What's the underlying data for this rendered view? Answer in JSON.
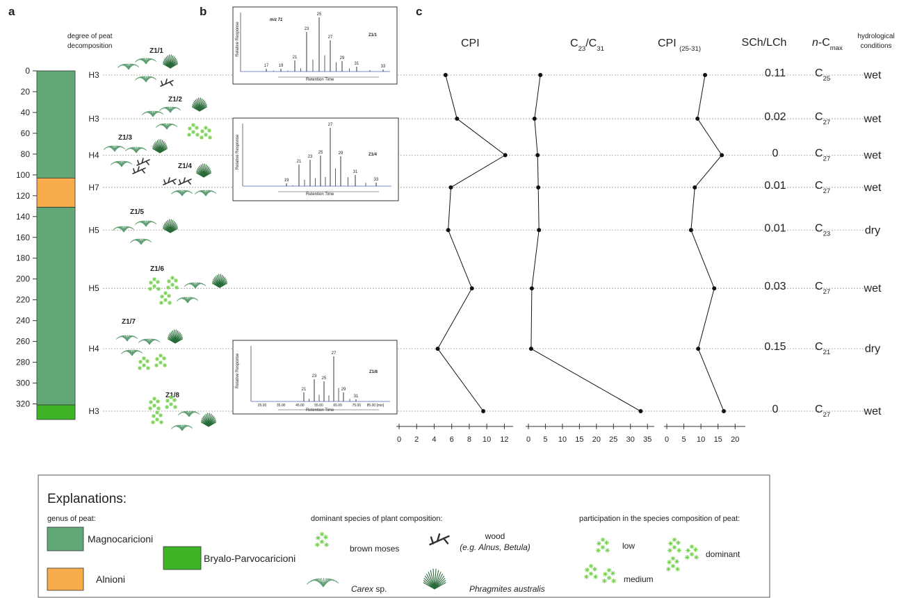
{
  "panel_labels": {
    "a": "a",
    "b": "b",
    "c": "c"
  },
  "column": {
    "header": [
      "degree of peat",
      "decomposition"
    ],
    "ylim": [
      0,
      335
    ],
    "yticks": [
      0,
      20,
      40,
      60,
      80,
      100,
      120,
      140,
      160,
      180,
      200,
      220,
      240,
      260,
      280,
      300,
      320
    ],
    "layers": [
      {
        "name": "Magnocaricioni",
        "color": "#62a877",
        "intervals": [
          [
            0,
            103
          ],
          [
            131,
            321
          ]
        ]
      },
      {
        "name": "Alnioni",
        "color": "#f9ac4b",
        "intervals": [
          [
            103,
            131
          ]
        ]
      },
      {
        "name": "Bryalo-Parvocaricioni",
        "color": "#3db526",
        "intervals": [
          [
            321,
            335
          ]
        ]
      }
    ]
  },
  "samples": {
    "ids": [
      "Z1/1",
      "Z1/2",
      "Z1/3",
      "Z1/4",
      "Z1/5",
      "Z1/6",
      "Z1/7",
      "Z1/8"
    ],
    "depth": [
      4,
      46,
      81,
      112,
      153,
      209,
      267,
      327
    ],
    "degree": [
      "H3",
      "H3",
      "H4",
      "H7",
      "H5",
      "H5",
      "H4",
      "H3"
    ],
    "scch_lch": [
      0.11,
      0.02,
      0,
      0.01,
      0.01,
      0.03,
      0.15,
      0
    ],
    "n_cmax": [
      [
        {
          "t": "C"
        },
        {
          "t": "25",
          "sub": true
        }
      ],
      [
        {
          "t": "C"
        },
        {
          "t": "27",
          "sub": true
        }
      ],
      [
        {
          "t": "C"
        },
        {
          "t": "27",
          "sub": true
        }
      ],
      [
        {
          "t": "C"
        },
        {
          "t": "27",
          "sub": true
        }
      ],
      [
        {
          "t": "C"
        },
        {
          "t": "23",
          "sub": true
        }
      ],
      [
        {
          "t": "C"
        },
        {
          "t": "27",
          "sub": true
        }
      ],
      [
        {
          "t": "C"
        },
        {
          "t": "21",
          "sub": true
        }
      ],
      [
        {
          "t": "C"
        },
        {
          "t": "27",
          "sub": true
        }
      ]
    ],
    "hydrology": [
      "wet",
      "wet",
      "wet",
      "wet",
      "dry",
      "wet",
      "dry",
      "wet"
    ]
  },
  "headers": {
    "scch_lch": "SCh/LCh",
    "n_cmax": [
      {
        "t": "n",
        "italic": true
      },
      {
        "t": "-C"
      },
      {
        "t": "max",
        "sub": true
      }
    ],
    "hydrology": [
      "hydrological",
      "conditions"
    ]
  },
  "chart_data": [
    {
      "type": "line",
      "title": [
        {
          "t": "CPI"
        }
      ],
      "color": "#111",
      "values": [
        5.3,
        6.6,
        12.1,
        5.9,
        5.6,
        8.3,
        4.4,
        9.6
      ],
      "xlim": [
        0,
        13
      ],
      "xticks": [
        0,
        2,
        4,
        6,
        8,
        10,
        12
      ]
    },
    {
      "type": "line",
      "title": [
        {
          "t": "C"
        },
        {
          "t": "23",
          "sub": true
        },
        {
          "t": "/C"
        },
        {
          "t": "31",
          "sub": true
        }
      ],
      "color": "#111",
      "values": [
        3.5,
        1.8,
        2.7,
        2.9,
        3.1,
        1.0,
        0.8,
        33
      ],
      "xlim": [
        0,
        37
      ],
      "xticks": [
        0,
        5,
        10,
        15,
        20,
        25,
        30,
        35
      ]
    },
    {
      "type": "line",
      "title": [
        {
          "t": "CPI "
        },
        {
          "t": "(25-31)",
          "sub": true
        }
      ],
      "color": "#111",
      "values": [
        11.2,
        9.0,
        16.1,
        8.2,
        7.1,
        13.9,
        9.2,
        16.7
      ],
      "xlim": [
        0,
        23
      ],
      "xticks": [
        0,
        5,
        10,
        15,
        20
      ]
    }
  ],
  "chromatograms": [
    {
      "sample": "Z1/1",
      "mz": "m/z 71",
      "y_label": "Relative Response",
      "x_label": "Retention Time",
      "peaks": [
        "17",
        "19",
        "21",
        "23",
        "25",
        "27",
        "29",
        "31",
        "33"
      ],
      "x_ticks": []
    },
    {
      "sample": "Z1/4",
      "y_label": "Relative Response",
      "x_label": "Retention Time",
      "peaks": [
        "19",
        "21",
        "23",
        "25",
        "27",
        "29",
        "31",
        "33"
      ],
      "x_ticks": []
    },
    {
      "sample": "Z1/8",
      "y_label": "Relative Response",
      "x_label": "Retention Time",
      "peaks": [
        "21",
        "23",
        "25",
        "27",
        "29",
        "31"
      ],
      "x_ticks": [
        "25.00",
        "35.00",
        "45.00",
        "55.00",
        "65.00",
        "75.00",
        "85.00 [min]"
      ]
    }
  ],
  "legend": {
    "title": "Explanations:",
    "genus_heading": "genus of peat:",
    "species_heading": "dominant species of plant composition:",
    "moss": "brown moses",
    "wood": "wood",
    "wood_note": "(e.g. Alnus, Betula)",
    "carex": [
      {
        "t": "Carex",
        "italic": true
      },
      {
        "t": " sp."
      }
    ],
    "phragmites": "Phragmites australis",
    "participation_heading": "participation in the species composition of peat:",
    "participation": [
      "low",
      "medium",
      "dominant"
    ]
  }
}
